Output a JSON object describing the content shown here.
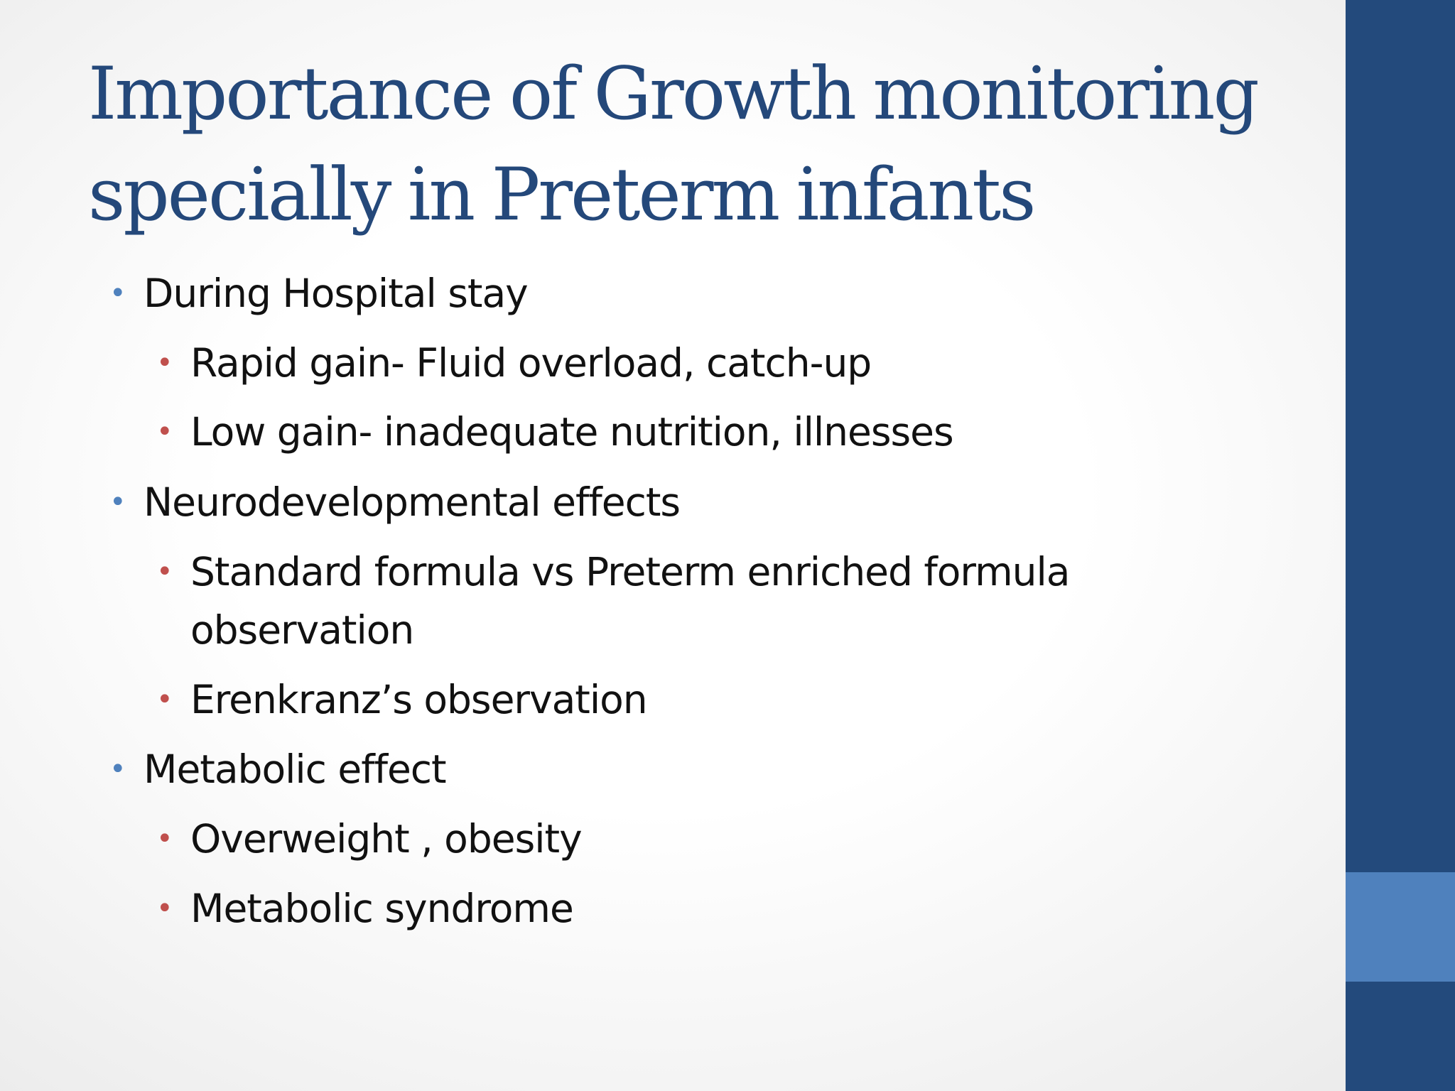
{
  "slide": {
    "title_line1": "Importance of Growth monitoring",
    "title_line2": "specially in Preterm infants",
    "bullets": [
      {
        "level": 1,
        "text": "During Hospital stay"
      },
      {
        "level": 2,
        "text": "Rapid gain- Fluid overload, catch-up"
      },
      {
        "level": 2,
        "text": "Low gain- inadequate nutrition, illnesses"
      },
      {
        "level": 1,
        "text": "Neurodevelopmental effects"
      },
      {
        "level": 2,
        "text": "Standard formula vs Preterm enriched formula"
      },
      {
        "level": 2,
        "text": "observation",
        "continuation": true
      },
      {
        "level": 2,
        "text": "Erenkranz’s observation"
      },
      {
        "level": 1,
        "text": "Metabolic effect"
      },
      {
        "level": 2,
        "text": "Overweight , obesity"
      },
      {
        "level": 2,
        "text": "Metabolic syndrome"
      }
    ],
    "bullet_glyph": "•"
  },
  "theme": {
    "title_color": "#24487a",
    "sidebar_color": "#234a7c",
    "sidebar_accent_color": "#4f81bd",
    "level1_bullet_color": "#4f81bd",
    "level2_bullet_color": "#c0504d",
    "text_color": "#111111"
  }
}
